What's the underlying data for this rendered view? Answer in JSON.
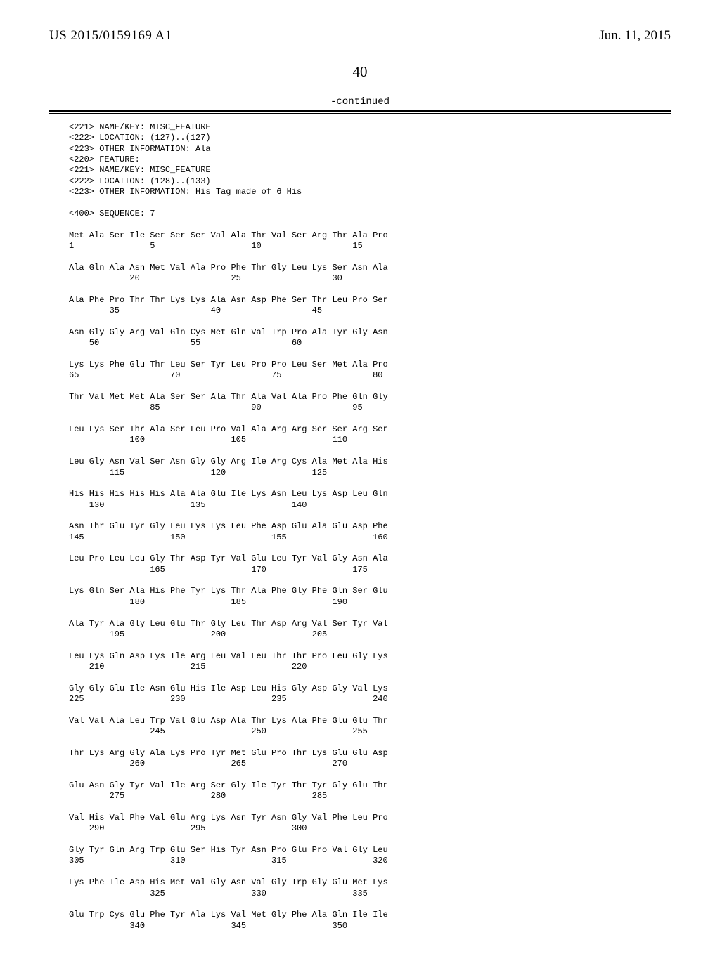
{
  "header": {
    "pub_number": "US 2015/0159169 A1",
    "pub_date": "Jun. 11, 2015"
  },
  "page_number": "40",
  "continued_label": "-continued",
  "annotations": [
    "<221> NAME/KEY: MISC_FEATURE",
    "<222> LOCATION: (127)..(127)",
    "<223> OTHER INFORMATION: Ala",
    "<220> FEATURE:",
    "<221> NAME/KEY: MISC_FEATURE",
    "<222> LOCATION: (128)..(133)",
    "<223> OTHER INFORMATION: His Tag made of 6 His",
    "",
    "<400> SEQUENCE: 7"
  ],
  "sequence": [
    {
      "aa": "Met Ala Ser Ile Ser Ser Ser Val Ala Thr Val Ser Arg Thr Ala Pro",
      "num": "1               5                   10                  15"
    },
    {
      "aa": "Ala Gln Ala Asn Met Val Ala Pro Phe Thr Gly Leu Lys Ser Asn Ala",
      "num": "            20                  25                  30"
    },
    {
      "aa": "Ala Phe Pro Thr Thr Lys Lys Ala Asn Asp Phe Ser Thr Leu Pro Ser",
      "num": "        35                  40                  45"
    },
    {
      "aa": "Asn Gly Gly Arg Val Gln Cys Met Gln Val Trp Pro Ala Tyr Gly Asn",
      "num": "    50                  55                  60"
    },
    {
      "aa": "Lys Lys Phe Glu Thr Leu Ser Tyr Leu Pro Pro Leu Ser Met Ala Pro",
      "num": "65                  70                  75                  80"
    },
    {
      "aa": "Thr Val Met Met Ala Ser Ser Ala Thr Ala Val Ala Pro Phe Gln Gly",
      "num": "                85                  90                  95"
    },
    {
      "aa": "Leu Lys Ser Thr Ala Ser Leu Pro Val Ala Arg Arg Ser Ser Arg Ser",
      "num": "            100                 105                 110"
    },
    {
      "aa": "Leu Gly Asn Val Ser Asn Gly Gly Arg Ile Arg Cys Ala Met Ala His",
      "num": "        115                 120                 125"
    },
    {
      "aa": "His His His His His Ala Ala Glu Ile Lys Asn Leu Lys Asp Leu Gln",
      "num": "    130                 135                 140"
    },
    {
      "aa": "Asn Thr Glu Tyr Gly Leu Lys Lys Leu Phe Asp Glu Ala Glu Asp Phe",
      "num": "145                 150                 155                 160"
    },
    {
      "aa": "Leu Pro Leu Leu Gly Thr Asp Tyr Val Glu Leu Tyr Val Gly Asn Ala",
      "num": "                165                 170                 175"
    },
    {
      "aa": "Lys Gln Ser Ala His Phe Tyr Lys Thr Ala Phe Gly Phe Gln Ser Glu",
      "num": "            180                 185                 190"
    },
    {
      "aa": "Ala Tyr Ala Gly Leu Glu Thr Gly Leu Thr Asp Arg Val Ser Tyr Val",
      "num": "        195                 200                 205"
    },
    {
      "aa": "Leu Lys Gln Asp Lys Ile Arg Leu Val Leu Thr Thr Pro Leu Gly Lys",
      "num": "    210                 215                 220"
    },
    {
      "aa": "Gly Gly Glu Ile Asn Glu His Ile Asp Leu His Gly Asp Gly Val Lys",
      "num": "225                 230                 235                 240"
    },
    {
      "aa": "Val Val Ala Leu Trp Val Glu Asp Ala Thr Lys Ala Phe Glu Glu Thr",
      "num": "                245                 250                 255"
    },
    {
      "aa": "Thr Lys Arg Gly Ala Lys Pro Tyr Met Glu Pro Thr Lys Glu Glu Asp",
      "num": "            260                 265                 270"
    },
    {
      "aa": "Glu Asn Gly Tyr Val Ile Arg Ser Gly Ile Tyr Thr Tyr Gly Glu Thr",
      "num": "        275                 280                 285"
    },
    {
      "aa": "Val His Val Phe Val Glu Arg Lys Asn Tyr Asn Gly Val Phe Leu Pro",
      "num": "    290                 295                 300"
    },
    {
      "aa": "Gly Tyr Gln Arg Trp Glu Ser His Tyr Asn Pro Glu Pro Val Gly Leu",
      "num": "305                 310                 315                 320"
    },
    {
      "aa": "Lys Phe Ile Asp His Met Val Gly Asn Val Gly Trp Gly Glu Met Lys",
      "num": "                325                 330                 335"
    },
    {
      "aa": "Glu Trp Cys Glu Phe Tyr Ala Lys Val Met Gly Phe Ala Gln Ile Ile",
      "num": "            340                 345                 350"
    }
  ]
}
